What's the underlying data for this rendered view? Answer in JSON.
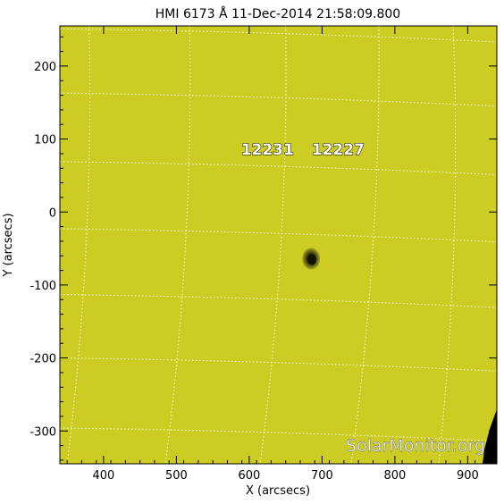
{
  "chart_data": {
    "type": "heatmap",
    "title": "HMI 6173 Å 11-Dec-2014 21:58:09.800",
    "xlabel": "X (arcsecs)",
    "ylabel": "Y (arcsecs)",
    "xlim": [
      340,
      940
    ],
    "ylim": [
      -345,
      255
    ],
    "xticks": [
      400,
      500,
      600,
      700,
      800,
      900
    ],
    "yticks": [
      -300,
      -200,
      -100,
      0,
      100,
      200
    ],
    "grid": true,
    "regions": [
      {
        "numbers": "12231",
        "x": 625,
        "y": 86
      },
      {
        "numbers": "12227",
        "x": 722,
        "y": 86
      }
    ],
    "sunspot": {
      "x": 685,
      "y": -64
    },
    "limb_edge_color": "#000000",
    "background_color": "#cccc22",
    "grid_color": "#ffffff",
    "watermark": "SolarMonitor.org"
  }
}
